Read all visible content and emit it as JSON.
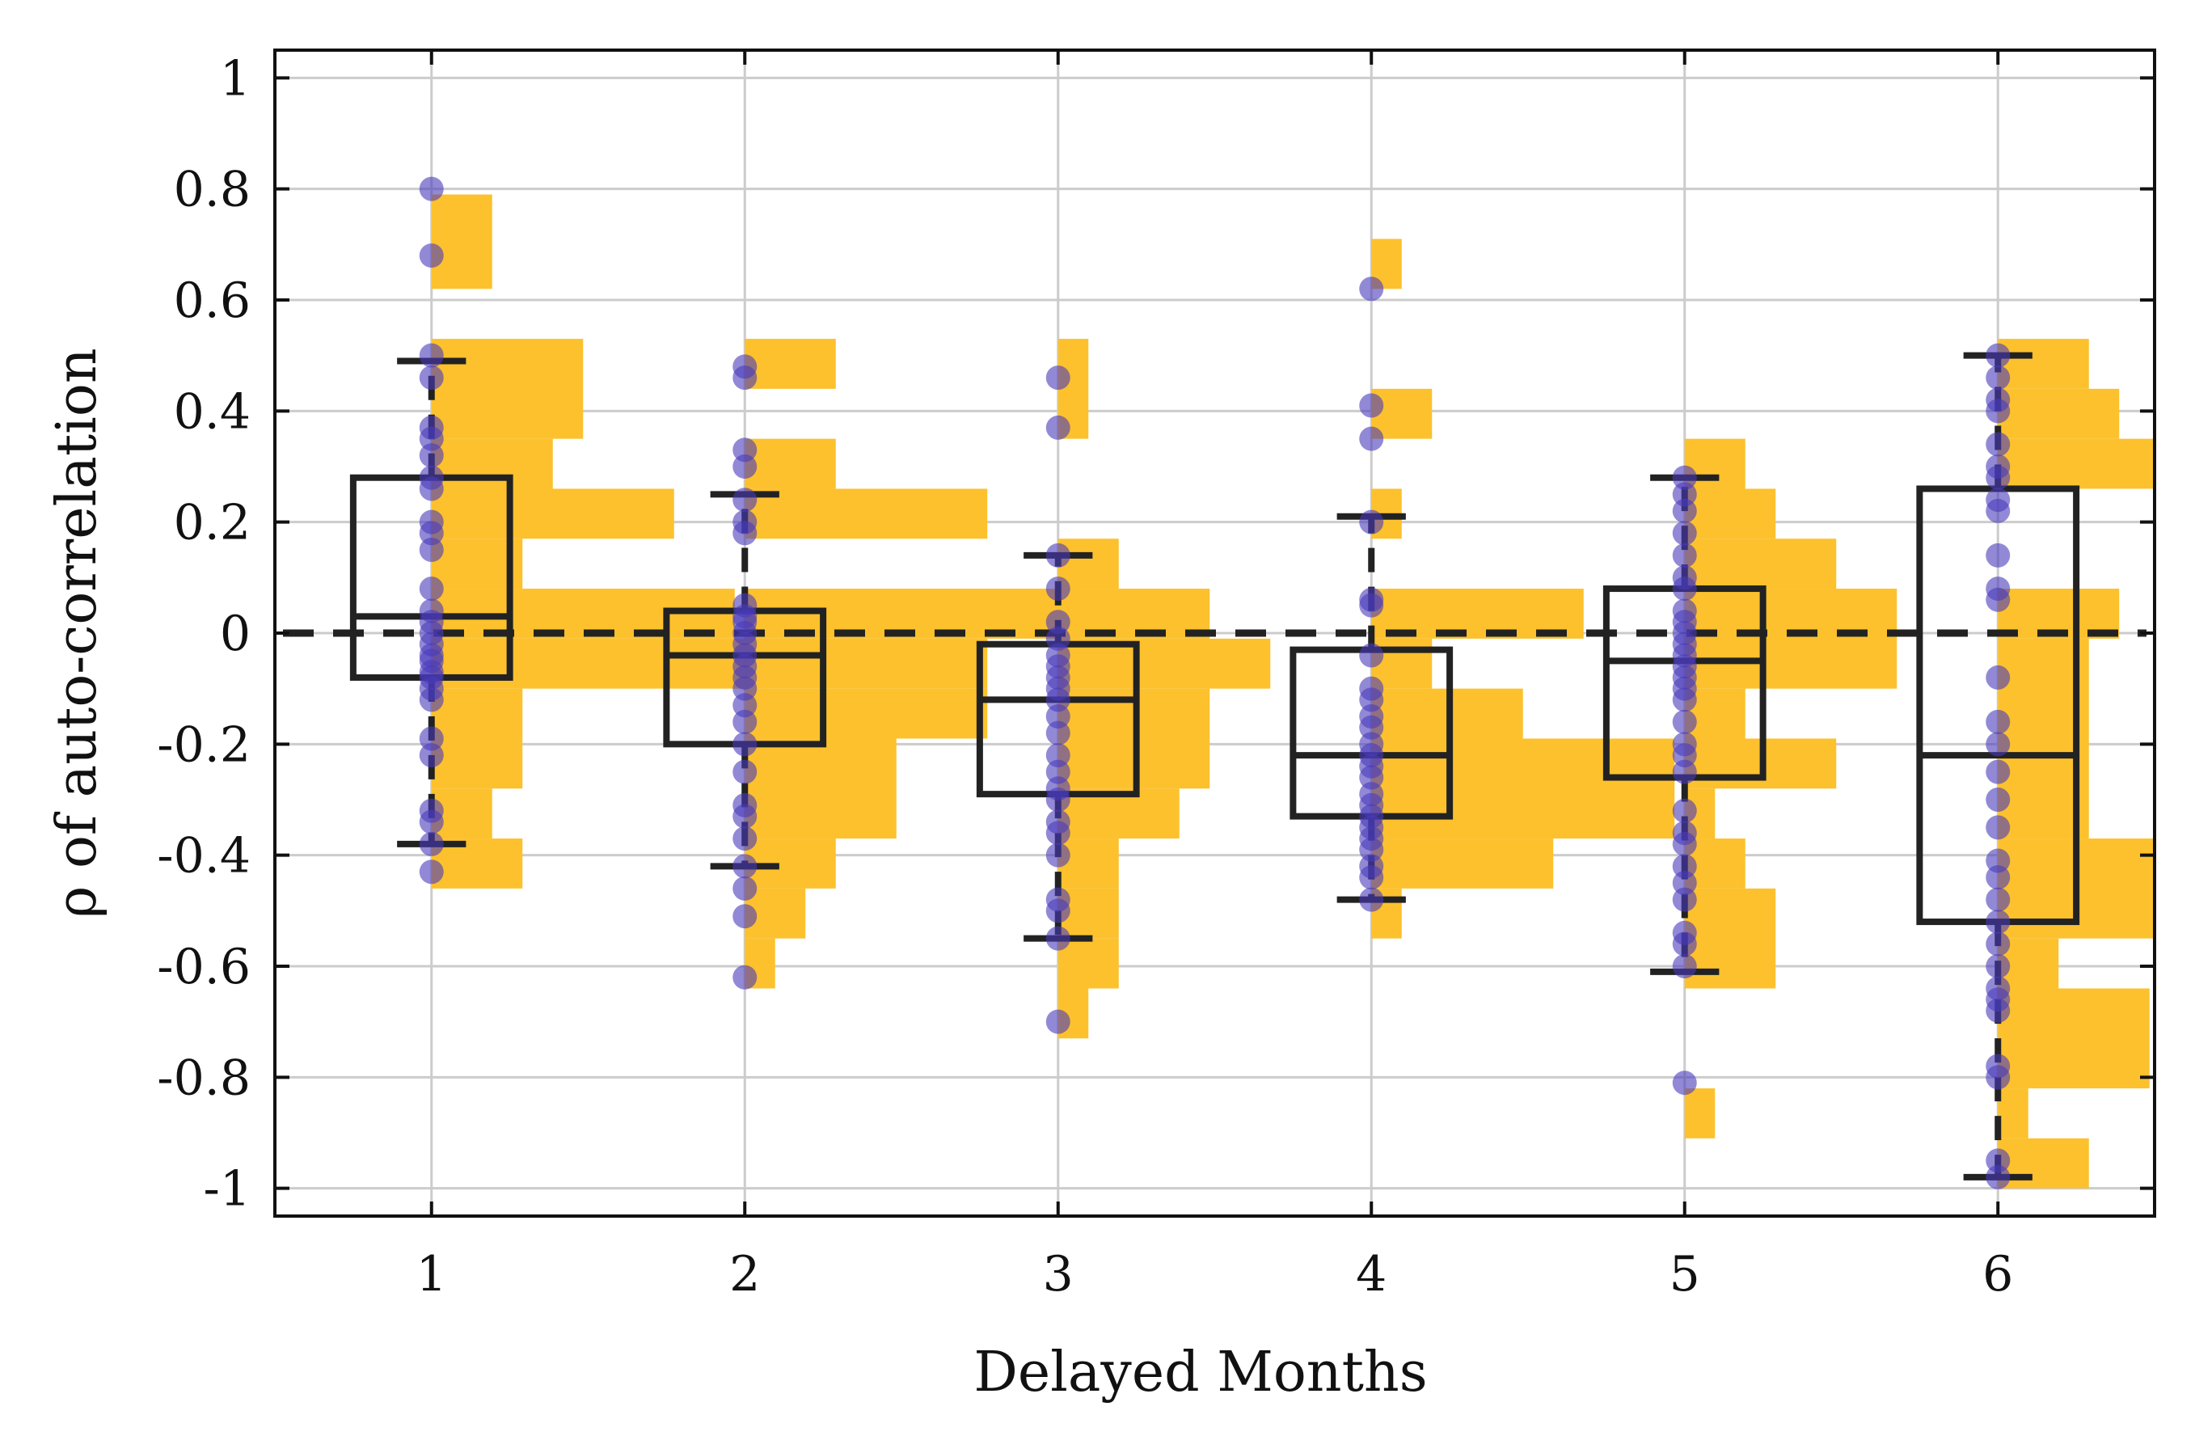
{
  "chart_data": {
    "type": "box-histogram-strip",
    "title": "",
    "xlabel": "Delayed   Months",
    "ylabel": "ρ  of auto-correlation",
    "xlim": [
      0.5,
      6.5
    ],
    "ylim": [
      -1.05,
      1.05
    ],
    "x_ticks": [
      {
        "value": 1,
        "label": "1"
      },
      {
        "value": 2,
        "label": "2"
      },
      {
        "value": 3,
        "label": "3"
      },
      {
        "value": 4,
        "label": "4"
      },
      {
        "value": 5,
        "label": "5"
      },
      {
        "value": 6,
        "label": "6"
      }
    ],
    "y_ticks": [
      {
        "value": 1,
        "label": "1"
      },
      {
        "value": 0.8,
        "label": "0.8"
      },
      {
        "value": 0.6,
        "label": "0.6"
      },
      {
        "value": 0.4,
        "label": "0.4"
      },
      {
        "value": 0.2,
        "label": "0.2"
      },
      {
        "value": 0,
        "label": "0"
      },
      {
        "value": -0.2,
        "label": "-0.2"
      },
      {
        "value": -0.4,
        "label": "-0.4"
      },
      {
        "value": -0.6,
        "label": "-0.6"
      },
      {
        "value": -0.8,
        "label": "-0.8"
      },
      {
        "value": -1,
        "label": "-1"
      }
    ],
    "grid": true,
    "reference_line": {
      "y": 0,
      "style": "dashed"
    },
    "colors": {
      "box": "#222222",
      "points": "#4a3aba",
      "histogram": "#fcc12d",
      "grid": "#cccccc"
    },
    "histogram_bin_width": 0.09,
    "groups": [
      {
        "x": 1,
        "box": {
          "q1": -0.08,
          "median": 0.03,
          "q3": 0.28,
          "whisker_low": -0.38,
          "whisker_high": 0.49
        },
        "points": [
          0.8,
          0.68,
          0.5,
          0.46,
          0.37,
          0.35,
          0.32,
          0.28,
          0.26,
          0.2,
          0.18,
          0.15,
          0.08,
          0.04,
          0.02,
          0.0,
          -0.02,
          -0.04,
          -0.05,
          -0.07,
          -0.08,
          -0.1,
          -0.12,
          -0.19,
          -0.22,
          -0.32,
          -0.34,
          -0.38,
          -0.43
        ],
        "histogram": [
          {
            "y0": 0.62,
            "y1": 0.79,
            "count": 2
          },
          {
            "y0": 0.35,
            "y1": 0.53,
            "count": 5
          },
          {
            "y0": 0.26,
            "y1": 0.35,
            "count": 4
          },
          {
            "y0": 0.17,
            "y1": 0.26,
            "count": 8
          },
          {
            "y0": 0.08,
            "y1": 0.17,
            "count": 3
          },
          {
            "y0": -0.01,
            "y1": 0.08,
            "count": 10
          },
          {
            "y0": -0.1,
            "y1": -0.01,
            "count": 11
          },
          {
            "y0": -0.19,
            "y1": -0.1,
            "count": 3
          },
          {
            "y0": -0.28,
            "y1": -0.19,
            "count": 3
          },
          {
            "y0": -0.37,
            "y1": -0.28,
            "count": 2
          },
          {
            "y0": -0.46,
            "y1": -0.37,
            "count": 3
          }
        ]
      },
      {
        "x": 2,
        "box": {
          "q1": -0.2,
          "median": -0.04,
          "q3": 0.04,
          "whisker_low": -0.42,
          "whisker_high": 0.25
        },
        "points": [
          0.48,
          0.46,
          0.33,
          0.3,
          0.24,
          0.2,
          0.18,
          0.05,
          0.03,
          0.02,
          0.0,
          -0.02,
          -0.04,
          -0.06,
          -0.08,
          -0.1,
          -0.13,
          -0.16,
          -0.2,
          -0.25,
          -0.31,
          -0.33,
          -0.37,
          -0.42,
          -0.46,
          -0.51,
          -0.62
        ],
        "histogram": [
          {
            "y0": 0.44,
            "y1": 0.53,
            "count": 3
          },
          {
            "y0": 0.26,
            "y1": 0.35,
            "count": 3
          },
          {
            "y0": 0.17,
            "y1": 0.26,
            "count": 8
          },
          {
            "y0": -0.01,
            "y1": 0.08,
            "count": 11
          },
          {
            "y0": -0.1,
            "y1": -0.01,
            "count": 8
          },
          {
            "y0": -0.19,
            "y1": -0.1,
            "count": 8
          },
          {
            "y0": -0.37,
            "y1": -0.19,
            "count": 5
          },
          {
            "y0": -0.46,
            "y1": -0.37,
            "count": 3
          },
          {
            "y0": -0.55,
            "y1": -0.46,
            "count": 2
          },
          {
            "y0": -0.64,
            "y1": -0.55,
            "count": 1
          }
        ]
      },
      {
        "x": 3,
        "box": {
          "q1": -0.29,
          "median": -0.12,
          "q3": -0.02,
          "whisker_low": -0.55,
          "whisker_high": 0.14
        },
        "points": [
          0.46,
          0.37,
          0.14,
          0.08,
          0.02,
          -0.01,
          -0.04,
          -0.06,
          -0.08,
          -0.1,
          -0.12,
          -0.15,
          -0.18,
          -0.22,
          -0.25,
          -0.28,
          -0.3,
          -0.34,
          -0.36,
          -0.4,
          -0.48,
          -0.5,
          -0.55,
          -0.7
        ],
        "histogram": [
          {
            "y0": 0.35,
            "y1": 0.53,
            "count": 1
          },
          {
            "y0": 0.08,
            "y1": 0.17,
            "count": 2
          },
          {
            "y0": -0.01,
            "y1": 0.08,
            "count": 5
          },
          {
            "y0": -0.1,
            "y1": -0.01,
            "count": 7
          },
          {
            "y0": -0.19,
            "y1": -0.1,
            "count": 5
          },
          {
            "y0": -0.28,
            "y1": -0.19,
            "count": 5
          },
          {
            "y0": -0.37,
            "y1": -0.28,
            "count": 4
          },
          {
            "y0": -0.46,
            "y1": -0.37,
            "count": 2
          },
          {
            "y0": -0.55,
            "y1": -0.46,
            "count": 2
          },
          {
            "y0": -0.64,
            "y1": -0.55,
            "count": 2
          },
          {
            "y0": -0.73,
            "y1": -0.64,
            "count": 1
          }
        ]
      },
      {
        "x": 4,
        "box": {
          "q1": -0.33,
          "median": -0.22,
          "q3": -0.03,
          "whisker_low": -0.48,
          "whisker_high": 0.21
        },
        "points": [
          0.62,
          0.41,
          0.35,
          0.2,
          0.06,
          0.05,
          -0.04,
          -0.1,
          -0.12,
          -0.15,
          -0.17,
          -0.2,
          -0.22,
          -0.24,
          -0.26,
          -0.29,
          -0.31,
          -0.33,
          -0.35,
          -0.37,
          -0.39,
          -0.42,
          -0.44,
          -0.48
        ],
        "histogram": [
          {
            "y0": 0.62,
            "y1": 0.71,
            "count": 1
          },
          {
            "y0": 0.35,
            "y1": 0.44,
            "count": 2
          },
          {
            "y0": 0.17,
            "y1": 0.26,
            "count": 1
          },
          {
            "y0": -0.01,
            "y1": 0.08,
            "count": 7
          },
          {
            "y0": -0.1,
            "y1": -0.01,
            "count": 2
          },
          {
            "y0": -0.19,
            "y1": -0.1,
            "count": 5
          },
          {
            "y0": -0.37,
            "y1": -0.19,
            "count": 10
          },
          {
            "y0": -0.46,
            "y1": -0.37,
            "count": 6
          },
          {
            "y0": -0.55,
            "y1": -0.46,
            "count": 1
          }
        ]
      },
      {
        "x": 5,
        "box": {
          "q1": -0.26,
          "median": -0.05,
          "q3": 0.08,
          "whisker_low": -0.61,
          "whisker_high": 0.28
        },
        "points": [
          0.28,
          0.25,
          0.22,
          0.18,
          0.14,
          0.1,
          0.08,
          0.04,
          0.02,
          0.0,
          -0.02,
          -0.04,
          -0.06,
          -0.08,
          -0.1,
          -0.12,
          -0.16,
          -0.2,
          -0.22,
          -0.25,
          -0.32,
          -0.36,
          -0.38,
          -0.42,
          -0.45,
          -0.48,
          -0.54,
          -0.56,
          -0.6,
          -0.81
        ],
        "histogram": [
          {
            "y0": 0.26,
            "y1": 0.35,
            "count": 2
          },
          {
            "y0": 0.17,
            "y1": 0.26,
            "count": 3
          },
          {
            "y0": 0.08,
            "y1": 0.17,
            "count": 5
          },
          {
            "y0": -0.1,
            "y1": 0.08,
            "count": 7
          },
          {
            "y0": -0.19,
            "y1": -0.1,
            "count": 2
          },
          {
            "y0": -0.28,
            "y1": -0.19,
            "count": 5
          },
          {
            "y0": -0.37,
            "y1": -0.28,
            "count": 1
          },
          {
            "y0": -0.46,
            "y1": -0.37,
            "count": 2
          },
          {
            "y0": -0.64,
            "y1": -0.46,
            "count": 3
          },
          {
            "y0": -0.91,
            "y1": -0.82,
            "count": 1
          }
        ]
      },
      {
        "x": 6,
        "box": {
          "q1": -0.52,
          "median": -0.22,
          "q3": 0.26,
          "whisker_low": -0.98,
          "whisker_high": 0.5
        },
        "points": [
          0.5,
          0.46,
          0.42,
          0.4,
          0.34,
          0.3,
          0.28,
          0.24,
          0.22,
          0.14,
          0.08,
          0.06,
          -0.08,
          -0.16,
          -0.2,
          -0.25,
          -0.3,
          -0.35,
          -0.41,
          -0.44,
          -0.48,
          -0.52,
          -0.56,
          -0.6,
          -0.64,
          -0.66,
          -0.68,
          -0.78,
          -0.8,
          -0.95,
          -0.98
        ],
        "histogram": [
          {
            "y0": 0.44,
            "y1": 0.53,
            "count": 3
          },
          {
            "y0": 0.35,
            "y1": 0.44,
            "count": 4
          },
          {
            "y0": 0.26,
            "y1": 0.35,
            "count": 8
          },
          {
            "y0": -0.01,
            "y1": 0.08,
            "count": 4
          },
          {
            "y0": -0.19,
            "y1": -0.01,
            "count": 3
          },
          {
            "y0": -0.37,
            "y1": -0.19,
            "count": 3
          },
          {
            "y0": -0.55,
            "y1": -0.37,
            "count": 6
          },
          {
            "y0": -0.64,
            "y1": -0.55,
            "count": 2
          },
          {
            "y0": -0.82,
            "y1": -0.64,
            "count": 5
          },
          {
            "y0": -0.91,
            "y1": -0.82,
            "count": 1
          },
          {
            "y0": -1.0,
            "y1": -0.91,
            "count": 3
          }
        ]
      }
    ]
  }
}
